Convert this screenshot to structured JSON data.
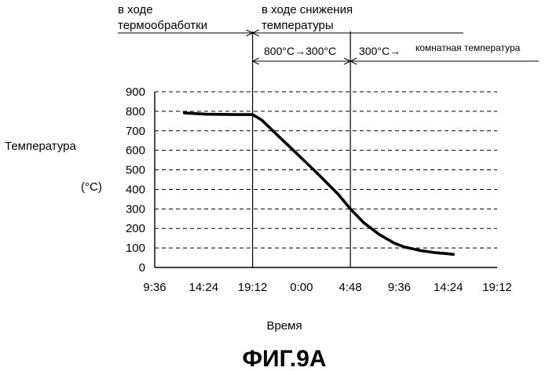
{
  "chart_data": {
    "type": "line",
    "xlabel": "Время",
    "ylabel": "Температура",
    "yunit": "(°C)",
    "figure_caption": "ФИГ.9A",
    "x_ticks": [
      "9:36",
      "14:24",
      "19:12",
      "0:00",
      "4:48",
      "9:36",
      "14:24",
      "19:12"
    ],
    "x_tick_hours": [
      0,
      4.8,
      9.6,
      14.4,
      19.2,
      24.0,
      28.8,
      33.6
    ],
    "y_ticks": [
      0,
      100,
      200,
      300,
      400,
      500,
      600,
      700,
      800,
      900
    ],
    "ylim": [
      0,
      900
    ],
    "xlim_hours": [
      0,
      33.6
    ],
    "grid": "horizontal-dashed",
    "series": [
      {
        "x_hours": [
          2.9,
          5.0,
          8.0,
          9.6,
          10.5,
          12.0,
          14.0,
          16.0,
          18.0,
          19.2,
          20.5,
          22.0,
          23.5,
          24.5,
          26.0,
          27.5,
          28.8,
          29.3
        ],
        "values": [
          792,
          785,
          783,
          783,
          755,
          680,
          580,
          480,
          375,
          300,
          230,
          170,
          125,
          105,
          87,
          76,
          70,
          67
        ]
      }
    ],
    "phase_markers_hours": [
      9.6,
      19.2
    ],
    "annotations": {
      "phase_heat_treatment": [
        "в ходе",
        "термообработки"
      ],
      "phase_cooling": [
        "в ходе снижения",
        "температуры"
      ],
      "range_1": "800°C→300°C",
      "range_2": "300°C→",
      "range_2_end": "комнатная температура"
    }
  }
}
